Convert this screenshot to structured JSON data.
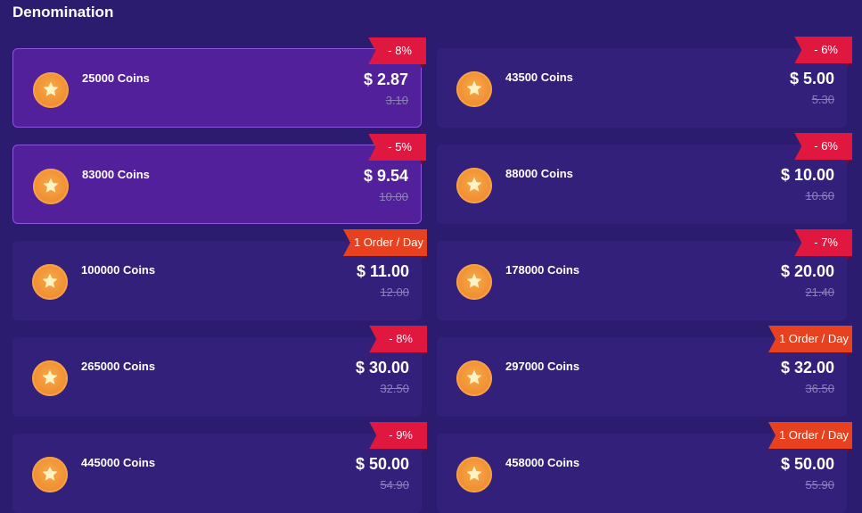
{
  "header": {
    "title": "Denomination"
  },
  "colors": {
    "background": "#2b1c6f",
    "card": "#33207a",
    "selected_card": "#53209b",
    "discount_badge": "#e0173f",
    "order_badge": "#e8411f"
  },
  "items": [
    {
      "coins": "25000 Coins",
      "price": "$ 2.87",
      "original": "3.10",
      "badge": "- 8%",
      "badge_type": "discount",
      "selected": true
    },
    {
      "coins": "43500 Coins",
      "price": "$ 5.00",
      "original": "5.30",
      "badge": "- 6%",
      "badge_type": "discount",
      "selected": false
    },
    {
      "coins": "83000 Coins",
      "price": "$ 9.54",
      "original": "10.00",
      "badge": "- 5%",
      "badge_type": "discount",
      "selected": true
    },
    {
      "coins": "88000 Coins",
      "price": "$ 10.00",
      "original": "10.60",
      "badge": "- 6%",
      "badge_type": "discount",
      "selected": false
    },
    {
      "coins": "100000 Coins",
      "price": "$ 11.00",
      "original": "12.00",
      "badge": "1 Order / Day",
      "badge_type": "order",
      "selected": false
    },
    {
      "coins": "178000 Coins",
      "price": "$ 20.00",
      "original": "21.40",
      "badge": "- 7%",
      "badge_type": "discount",
      "selected": false
    },
    {
      "coins": "265000 Coins",
      "price": "$ 30.00",
      "original": "32.50",
      "badge": "- 8%",
      "badge_type": "discount",
      "selected": false
    },
    {
      "coins": "297000 Coins",
      "price": "$ 32.00",
      "original": "36.50",
      "badge": "1 Order / Day",
      "badge_type": "order",
      "selected": false
    },
    {
      "coins": "445000 Coins",
      "price": "$ 50.00",
      "original": "54.90",
      "badge": "- 9%",
      "badge_type": "discount",
      "selected": false
    },
    {
      "coins": "458000 Coins",
      "price": "$ 50.00",
      "original": "55.90",
      "badge": "1 Order / Day",
      "badge_type": "order",
      "selected": false
    }
  ],
  "icons": {
    "coin": "coin-star-icon"
  }
}
